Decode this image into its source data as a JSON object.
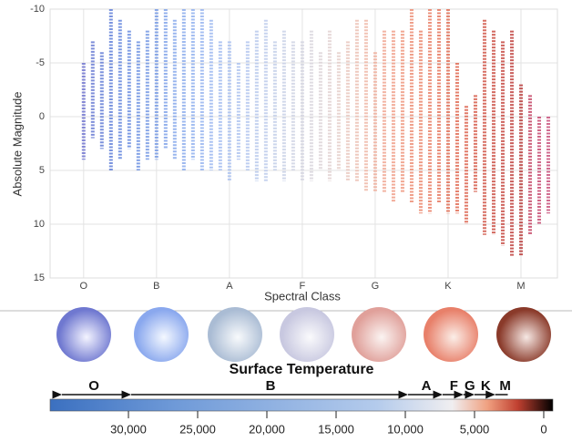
{
  "chart_data": [
    {
      "type": "strip",
      "xlabel": "Spectral Class",
      "ylabel": "Absolute Magnitude",
      "xlim": [
        -0.46,
        6.5
      ],
      "ylim": [
        -10,
        15
      ],
      "y_inverted": true,
      "grid": true,
      "xticks": [
        {
          "value": 0,
          "label": "O"
        },
        {
          "value": 1,
          "label": "B"
        },
        {
          "value": 2,
          "label": "A"
        },
        {
          "value": 3,
          "label": "F"
        },
        {
          "value": 4,
          "label": "G"
        },
        {
          "value": 5,
          "label": "K"
        },
        {
          "value": 6,
          "label": "M"
        }
      ],
      "yticks": [
        -10,
        -5,
        0,
        5,
        10,
        15
      ],
      "columns": [
        {
          "x": 0,
          "ymin": -5,
          "ymax": 4,
          "color": "#6b6fcf"
        },
        {
          "x": 0.125,
          "ymin": -7,
          "ymax": 2,
          "color": "#5f72d0"
        },
        {
          "x": 0.25,
          "ymin": -6,
          "ymax": 3,
          "color": "#5a76d4"
        },
        {
          "x": 0.375,
          "ymin": -10,
          "ymax": 5,
          "color": "#5a7ad8"
        },
        {
          "x": 0.5,
          "ymin": -9,
          "ymax": 4,
          "color": "#5c80dc"
        },
        {
          "x": 0.625,
          "ymin": -8,
          "ymax": 3,
          "color": "#6085de"
        },
        {
          "x": 0.75,
          "ymin": -7,
          "ymax": 5,
          "color": "#658be0"
        },
        {
          "x": 0.875,
          "ymin": -8,
          "ymax": 4,
          "color": "#6a90e2"
        },
        {
          "x": 1,
          "ymin": -10,
          "ymax": 4,
          "color": "#7095e4"
        },
        {
          "x": 1.125,
          "ymin": -10,
          "ymax": 3,
          "color": "#7a9ee8"
        },
        {
          "x": 1.25,
          "ymin": -9,
          "ymax": 4,
          "color": "#80a3ea"
        },
        {
          "x": 1.375,
          "ymin": -10,
          "ymax": 5,
          "color": "#86a8ec"
        },
        {
          "x": 1.5,
          "ymin": -10,
          "ymax": 4,
          "color": "#8cadee"
        },
        {
          "x": 1.625,
          "ymin": -10,
          "ymax": 5,
          "color": "#92b1ef"
        },
        {
          "x": 1.75,
          "ymin": -9,
          "ymax": 5,
          "color": "#98b5f0"
        },
        {
          "x": 1.875,
          "ymin": -7,
          "ymax": 5,
          "color": "#9eb9f0"
        },
        {
          "x": 2,
          "ymin": -7,
          "ymax": 6,
          "color": "#a4bdf0"
        },
        {
          "x": 2.125,
          "ymin": -5,
          "ymax": 4,
          "color": "#a9c0ef"
        },
        {
          "x": 2.25,
          "ymin": -7,
          "ymax": 5,
          "color": "#aec3ee"
        },
        {
          "x": 2.375,
          "ymin": -8,
          "ymax": 6,
          "color": "#b4c6ec"
        },
        {
          "x": 2.5,
          "ymin": -9,
          "ymax": 6,
          "color": "#bac9ea"
        },
        {
          "x": 2.625,
          "ymin": -7,
          "ymax": 5,
          "color": "#c0cce8"
        },
        {
          "x": 2.75,
          "ymin": -8,
          "ymax": 6,
          "color": "#c6cfe6"
        },
        {
          "x": 2.875,
          "ymin": -7,
          "ymax": 5,
          "color": "#ccd1e3"
        },
        {
          "x": 3,
          "ymin": -7,
          "ymax": 6,
          "color": "#d2d3e0"
        },
        {
          "x": 3.125,
          "ymin": -8,
          "ymax": 6,
          "color": "#d8d4dc"
        },
        {
          "x": 3.25,
          "ymin": -6,
          "ymax": 5,
          "color": "#dcd2d6"
        },
        {
          "x": 3.375,
          "ymin": -8,
          "ymax": 6,
          "color": "#e0cfcf"
        },
        {
          "x": 3.5,
          "ymin": -6,
          "ymax": 5,
          "color": "#e4cbc6"
        },
        {
          "x": 3.625,
          "ymin": -7,
          "ymax": 6,
          "color": "#e8c4bb"
        },
        {
          "x": 3.75,
          "ymin": -9,
          "ymax": 6,
          "color": "#ebbcae"
        },
        {
          "x": 3.875,
          "ymin": -9,
          "ymax": 7,
          "color": "#eeb3a2"
        },
        {
          "x": 4,
          "ymin": -6,
          "ymax": 7,
          "color": "#efaa96"
        },
        {
          "x": 4.125,
          "ymin": -8,
          "ymax": 7,
          "color": "#f0a18b"
        },
        {
          "x": 4.25,
          "ymin": -8,
          "ymax": 8,
          "color": "#ef9880"
        },
        {
          "x": 4.375,
          "ymin": -8,
          "ymax": 7,
          "color": "#ee9076"
        },
        {
          "x": 4.5,
          "ymin": -10,
          "ymax": 8,
          "color": "#ec886d"
        },
        {
          "x": 4.625,
          "ymin": -8,
          "ymax": 9,
          "color": "#ea8065"
        },
        {
          "x": 4.75,
          "ymin": -10,
          "ymax": 9,
          "color": "#e8785d"
        },
        {
          "x": 4.875,
          "ymin": -10,
          "ymax": 8,
          "color": "#e57056"
        },
        {
          "x": 5,
          "ymin": -10,
          "ymax": 9,
          "color": "#e2694f"
        },
        {
          "x": 5.125,
          "ymin": -5,
          "ymax": 9,
          "color": "#df6249"
        },
        {
          "x": 5.25,
          "ymin": -1,
          "ymax": 10,
          "color": "#da5a44"
        },
        {
          "x": 5.375,
          "ymin": -2,
          "ymax": 7,
          "color": "#d4523f"
        },
        {
          "x": 5.5,
          "ymin": -9,
          "ymax": 11,
          "color": "#ce4a3b"
        },
        {
          "x": 5.625,
          "ymin": -8,
          "ymax": 11,
          "color": "#c84337"
        },
        {
          "x": 5.75,
          "ymin": -7,
          "ymax": 12,
          "color": "#c23c34"
        },
        {
          "x": 5.875,
          "ymin": -8,
          "ymax": 13,
          "color": "#bc3531"
        },
        {
          "x": 6,
          "ymin": -3,
          "ymax": 13,
          "color": "#b6302f"
        },
        {
          "x": 6.125,
          "ymin": -2,
          "ymax": 11,
          "color": "#c0385a"
        },
        {
          "x": 6.25,
          "ymin": 0,
          "ymax": 10,
          "color": "#c4406a"
        },
        {
          "x": 6.375,
          "ymin": 0,
          "ymax": 9,
          "color": "#c64875"
        }
      ]
    },
    {
      "type": "colorbar",
      "title": "Surface Temperature",
      "xlim": [
        35660,
        -660
      ],
      "xticks": [
        {
          "value": 30000,
          "label": "30,000"
        },
        {
          "value": 25000,
          "label": "25,000"
        },
        {
          "value": 20000,
          "label": "20,000"
        },
        {
          "value": 15000,
          "label": "15,000"
        },
        {
          "value": 10000,
          "label": "10,000"
        },
        {
          "value": 5000,
          "label": "5,000"
        },
        0
      ],
      "classes": [
        {
          "label": "O",
          "from": 35000,
          "to": 30000
        },
        {
          "label": "B",
          "from": 30000,
          "to": 10000
        },
        {
          "label": "A",
          "from": 10000,
          "to": 7500
        },
        {
          "label": "F",
          "from": 7500,
          "to": 6000
        },
        {
          "label": "G",
          "from": 6000,
          "to": 5200
        },
        {
          "label": "K",
          "from": 5200,
          "to": 3700
        },
        {
          "label": "M",
          "from": 3700,
          "to": 2400
        }
      ]
    }
  ]
}
